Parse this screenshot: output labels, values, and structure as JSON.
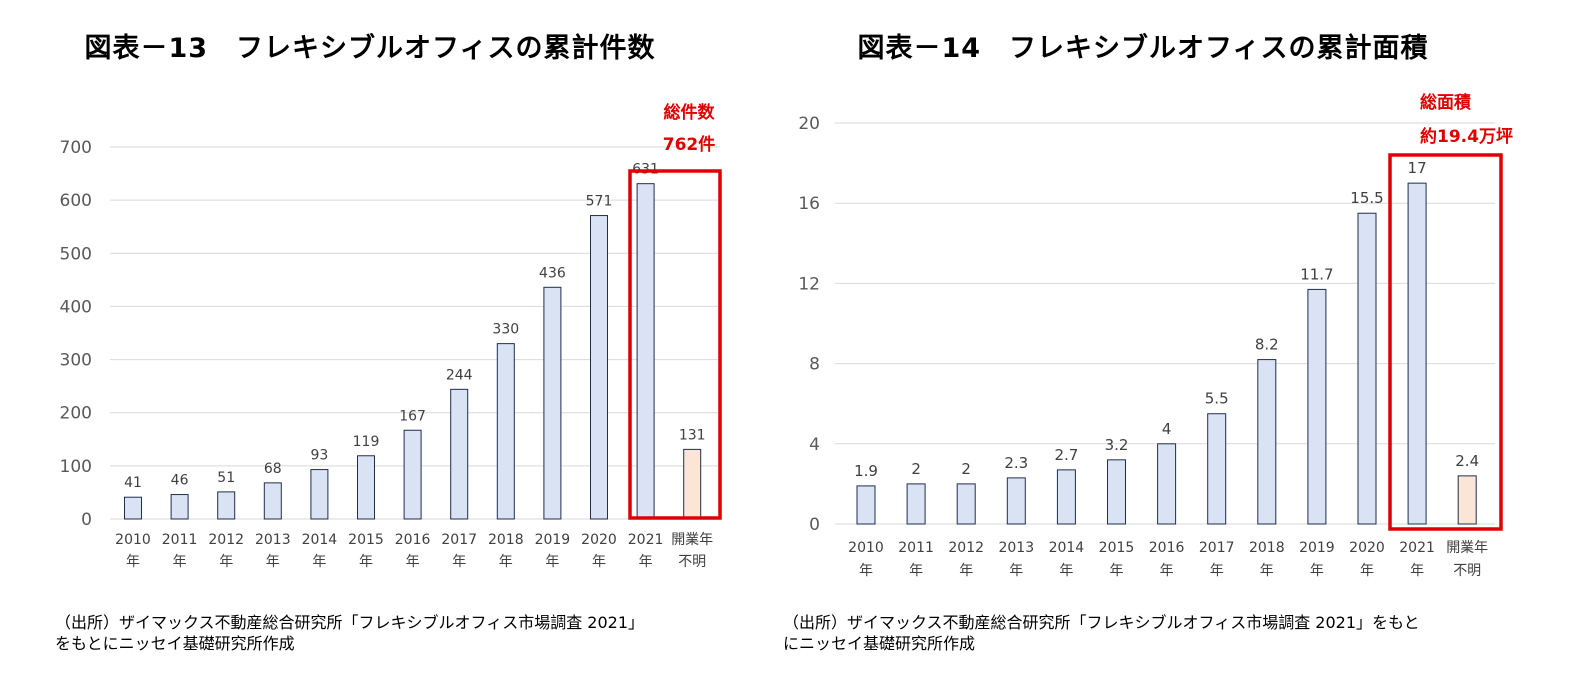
{
  "charts": [
    {
      "title": "図表－13　フレキシブルオフィスの累計件数",
      "total_label_line1": "総件数",
      "total_label_line2": "762件",
      "source_line1": "（出所）ザイマックス不動産総合研究所「フレキシブルオフィス市場調査 2021」",
      "source_line2": "をもとにニッセイ基礎研究所作成"
    },
    {
      "title": "図表－14　フレキシブルオフィスの累計面積",
      "total_label_line1": "総面積",
      "total_label_line2": "約19.4万坪",
      "source_line1": "（出所）ザイマックス不動産総合研究所「フレキシブルオフィス市場調査 2021」をもと",
      "source_line2": "にニッセイ基礎研究所作成"
    }
  ],
  "chart_data": [
    {
      "type": "bar",
      "title": "図表－13　フレキシブルオフィスの累計件数",
      "categories": [
        [
          "2010",
          "年"
        ],
        [
          "2011",
          "年"
        ],
        [
          "2012",
          "年"
        ],
        [
          "2013",
          "年"
        ],
        [
          "2014",
          "年"
        ],
        [
          "2015",
          "年"
        ],
        [
          "2016",
          "年"
        ],
        [
          "2017",
          "年"
        ],
        [
          "2018",
          "年"
        ],
        [
          "2019",
          "年"
        ],
        [
          "2020",
          "年"
        ],
        [
          "2021",
          "年"
        ],
        [
          "開業年",
          "不明"
        ]
      ],
      "values": [
        41,
        46,
        51,
        68,
        93,
        119,
        167,
        244,
        330,
        436,
        571,
        631,
        131
      ],
      "value_labels": [
        "41",
        "46",
        "51",
        "68",
        "93",
        "119",
        "167",
        "244",
        "330",
        "436",
        "571",
        "631",
        "131"
      ],
      "yticks": [
        0,
        100,
        200,
        300,
        400,
        500,
        600,
        700
      ],
      "ylim": [
        0,
        700
      ],
      "highlight_indices": [
        11,
        12
      ],
      "colors": {
        "bar": "#dae3f3",
        "bar_unknown": "#fbe5d6",
        "bar_stroke": "#1f2d4e",
        "highlight": "#e00000",
        "grid": "#d9d9d9",
        "tick": "#595959"
      },
      "xlabel": "",
      "ylabel": ""
    },
    {
      "type": "bar",
      "title": "図表－14　フレキシブルオフィスの累計面積",
      "categories": [
        [
          "2010",
          "年"
        ],
        [
          "2011",
          "年"
        ],
        [
          "2012",
          "年"
        ],
        [
          "2013",
          "年"
        ],
        [
          "2014",
          "年"
        ],
        [
          "2015",
          "年"
        ],
        [
          "2016",
          "年"
        ],
        [
          "2017",
          "年"
        ],
        [
          "2018",
          "年"
        ],
        [
          "2019",
          "年"
        ],
        [
          "2020",
          "年"
        ],
        [
          "2021",
          "年"
        ],
        [
          "開業年",
          "不明"
        ]
      ],
      "values": [
        1.9,
        2,
        2,
        2.3,
        2.7,
        3.2,
        4,
        5.5,
        8.2,
        11.7,
        15.5,
        17,
        2.4
      ],
      "value_labels": [
        "1.9",
        "2",
        "2",
        "2.3",
        "2.7",
        "3.2",
        "4",
        "5.5",
        "8.2",
        "11.7",
        "15.5",
        "17",
        "2.4"
      ],
      "yticks": [
        0,
        4,
        8,
        12,
        16,
        20
      ],
      "ylim": [
        0,
        20
      ],
      "highlight_indices": [
        11,
        12
      ],
      "colors": {
        "bar": "#dae3f3",
        "bar_unknown": "#fbe5d6",
        "bar_stroke": "#1f2d4e",
        "highlight": "#e00000",
        "grid": "#d9d9d9",
        "tick": "#595959"
      },
      "xlabel": "",
      "ylabel": ""
    }
  ]
}
